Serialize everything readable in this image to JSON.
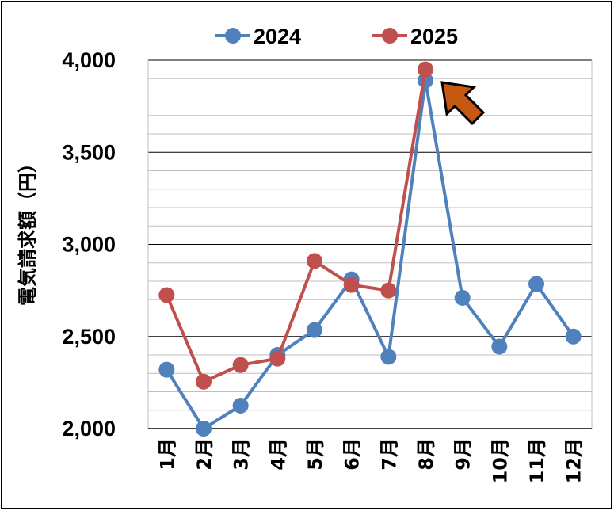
{
  "chart_data": {
    "type": "line",
    "title": "",
    "xlabel": "",
    "ylabel": "電気請求額（円）",
    "categories": [
      "1月",
      "2月",
      "3月",
      "4月",
      "5月",
      "6月",
      "7月",
      "8月",
      "9月",
      "10月",
      "11月",
      "12月"
    ],
    "ylim": [
      2000,
      4000
    ],
    "yticks": [
      2000,
      2500,
      3000,
      3500,
      4000
    ],
    "ytick_labels": [
      "2,000",
      "2,500",
      "3,000",
      "3,500",
      "4,000"
    ],
    "minor_grid_step": 100,
    "grid": true,
    "legend_position": "top",
    "series": [
      {
        "name": "2024",
        "color": "#4f81bd",
        "values": [
          2320,
          2000,
          2125,
          2400,
          2535,
          2810,
          2390,
          3890,
          2710,
          2445,
          2785,
          2500
        ]
      },
      {
        "name": "2025",
        "color": "#c0504d",
        "values": [
          2725,
          2255,
          2345,
          2380,
          2910,
          2780,
          2750,
          3950,
          null,
          null,
          null,
          null
        ]
      }
    ],
    "annotations": [
      {
        "type": "arrow",
        "points_to": "8月",
        "color": "#c65911"
      }
    ]
  }
}
